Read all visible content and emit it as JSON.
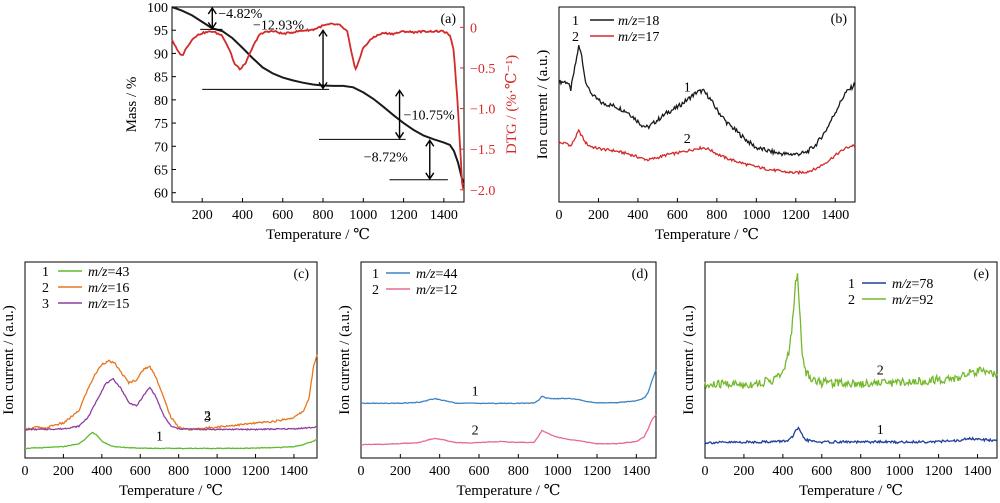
{
  "colors": {
    "black": "#1a1a1a",
    "red": "#d42a2a",
    "orange": "#e8761e",
    "purple": "#8e3fa0",
    "green": "#5dbb2f",
    "blue": "#3f83c6",
    "pink": "#e56a9a",
    "navy": "#1f3f9a",
    "lime": "#74b82c"
  },
  "chart_data": [
    {
      "id": "a",
      "panel_label": "(a)",
      "type": "line",
      "xlabel": "Temperature / ℃",
      "ylabel": "Mass / %",
      "y2label": "DTG / (%·℃⁻¹)",
      "xlim": [
        50,
        1500
      ],
      "ylim": [
        58,
        100
      ],
      "y2lim": [
        -2.15,
        0.25
      ],
      "xticks": [
        200,
        400,
        600,
        800,
        1000,
        1200,
        1400
      ],
      "yticks": [
        60,
        65,
        70,
        75,
        80,
        85,
        90,
        95,
        100
      ],
      "y2ticks": [
        0,
        -0.5,
        -1.0,
        -1.5,
        -2.0
      ],
      "y2ticklabels": [
        "0",
        "−0.5",
        "−1.0",
        "−1.5",
        "−2.0"
      ],
      "series": [
        {
          "axis": "left",
          "color": "black",
          "x": [
            50,
            100,
            150,
            200,
            250,
            300,
            350,
            400,
            450,
            500,
            550,
            600,
            650,
            700,
            750,
            800,
            850,
            900,
            950,
            1000,
            1050,
            1100,
            1150,
            1200,
            1250,
            1300,
            1350,
            1400,
            1430,
            1450,
            1470,
            1490,
            1500
          ],
          "y": [
            100,
            99.2,
            98.2,
            96.8,
            95.4,
            94.8,
            93.3,
            91.2,
            89.0,
            87.0,
            85.7,
            84.8,
            84.2,
            83.7,
            83.3,
            83.1,
            83.0,
            83.0,
            82.7,
            81.6,
            80.2,
            78.5,
            76.7,
            75.0,
            73.5,
            72.3,
            71.5,
            70.8,
            70.3,
            69.0,
            66.5,
            63.0,
            62.2
          ]
        },
        {
          "axis": "right",
          "color": "red",
          "x": [
            50,
            80,
            100,
            130,
            160,
            200,
            250,
            300,
            340,
            360,
            390,
            420,
            450,
            480,
            520,
            560,
            600,
            650,
            700,
            750,
            800,
            840,
            880,
            920,
            940,
            960,
            980,
            1000,
            1050,
            1100,
            1150,
            1200,
            1250,
            1300,
            1350,
            1400,
            1430,
            1450,
            1470,
            1490,
            1500
          ],
          "y": [
            -0.15,
            -0.3,
            -0.35,
            -0.22,
            -0.12,
            -0.07,
            -0.05,
            -0.1,
            -0.3,
            -0.45,
            -0.52,
            -0.42,
            -0.25,
            -0.1,
            -0.05,
            -0.05,
            -0.08,
            -0.06,
            -0.04,
            -0.03,
            0.02,
            0.04,
            0.03,
            -0.05,
            -0.3,
            -0.52,
            -0.4,
            -0.25,
            -0.12,
            -0.07,
            -0.08,
            -0.05,
            -0.06,
            -0.05,
            -0.05,
            -0.05,
            -0.1,
            -0.3,
            -1.0,
            -1.9,
            -2.05
          ]
        }
      ],
      "annotations": [
        {
          "text": "−4.82%",
          "from": 100,
          "to": 95.18,
          "x": 250
        },
        {
          "text": "−12.93%",
          "from": 95.18,
          "to": 82.25,
          "x": 800
        },
        {
          "text": "−10.75%",
          "from": 82.25,
          "to": 71.5,
          "x": 1180
        },
        {
          "text": "−8.72%",
          "from": 71.5,
          "to": 62.78,
          "x": 1330
        }
      ]
    },
    {
      "id": "b",
      "panel_label": "(b)",
      "type": "line",
      "xlabel": "Temperature / ℃",
      "ylabel": "Ion current / (a.u.)",
      "xlim": [
        0,
        1500
      ],
      "xticks": [
        0,
        200,
        400,
        600,
        800,
        1000,
        1200,
        1400
      ],
      "series": [
        {
          "name": "m/z=18",
          "legend_index": "1",
          "label": "1",
          "label_x": 650,
          "color": "black",
          "x": [
            40,
            60,
            80,
            100,
            115,
            130,
            150,
            180,
            220,
            280,
            350,
            420,
            450,
            500,
            550,
            600,
            650,
            700,
            730,
            760,
            800,
            850,
            900,
            950,
            1000,
            1050,
            1100,
            1150,
            1200,
            1250,
            1300,
            1350,
            1400,
            1450,
            1500
          ],
          "y": [
            0.64,
            0.58,
            0.75,
            0.92,
            0.85,
            0.68,
            0.58,
            0.52,
            0.47,
            0.45,
            0.4,
            0.3,
            0.28,
            0.34,
            0.4,
            0.44,
            0.5,
            0.56,
            0.57,
            0.52,
            0.42,
            0.32,
            0.25,
            0.18,
            0.12,
            0.1,
            0.08,
            0.07,
            0.07,
            0.08,
            0.14,
            0.25,
            0.4,
            0.55,
            0.62
          ]
        },
        {
          "name": "m/z=17",
          "legend_index": "2",
          "label": "2",
          "label_x": 650,
          "color": "red",
          "x": [
            40,
            60,
            80,
            100,
            115,
            130,
            150,
            180,
            220,
            280,
            350,
            420,
            450,
            500,
            550,
            600,
            650,
            700,
            730,
            760,
            800,
            850,
            900,
            950,
            1000,
            1050,
            1100,
            1150,
            1200,
            1250,
            1300,
            1350,
            1400,
            1450,
            1500
          ],
          "y": [
            0.62,
            0.58,
            0.68,
            0.78,
            0.72,
            0.64,
            0.59,
            0.56,
            0.54,
            0.52,
            0.48,
            0.42,
            0.4,
            0.43,
            0.47,
            0.49,
            0.52,
            0.55,
            0.56,
            0.54,
            0.48,
            0.42,
            0.38,
            0.34,
            0.31,
            0.28,
            0.26,
            0.24,
            0.23,
            0.24,
            0.28,
            0.36,
            0.46,
            0.55,
            0.6
          ]
        }
      ]
    },
    {
      "id": "c",
      "panel_label": "(c)",
      "type": "line",
      "xlabel": "Temperature / ℃",
      "ylabel": "Ion current / (a.u.)",
      "xlim": [
        0,
        1520
      ],
      "xticks": [
        0,
        200,
        400,
        600,
        800,
        1000,
        1200,
        1400
      ],
      "series": [
        {
          "name": "m/z=43",
          "legend_index": "1",
          "label": "1",
          "label_x": 700,
          "color": "green",
          "x": [
            0,
            100,
            200,
            280,
            320,
            350,
            370,
            400,
            450,
            500,
            600,
            700,
            800,
            900,
            1000,
            1100,
            1200,
            1300,
            1400,
            1450,
            1500,
            1520
          ],
          "y": [
            0.05,
            0.07,
            0.1,
            0.18,
            0.35,
            0.5,
            0.45,
            0.25,
            0.12,
            0.08,
            0.06,
            0.05,
            0.05,
            0.05,
            0.05,
            0.05,
            0.06,
            0.07,
            0.1,
            0.16,
            0.25,
            0.3
          ]
        },
        {
          "name": "m/z=16",
          "legend_index": "2",
          "label": "2",
          "label_x": 950,
          "color": "orange",
          "x": [
            0,
            60,
            100,
            150,
            200,
            280,
            320,
            360,
            400,
            440,
            470,
            500,
            540,
            580,
            620,
            650,
            680,
            720,
            760,
            800,
            850,
            900,
            1000,
            1100,
            1200,
            1300,
            1400,
            1450,
            1480,
            1500,
            1520
          ],
          "y": [
            0.05,
            0.08,
            0.06,
            0.1,
            0.12,
            0.25,
            0.45,
            0.62,
            0.75,
            0.78,
            0.75,
            0.66,
            0.55,
            0.58,
            0.7,
            0.72,
            0.62,
            0.4,
            0.18,
            0.08,
            0.05,
            0.06,
            0.08,
            0.1,
            0.12,
            0.14,
            0.18,
            0.25,
            0.4,
            0.7,
            0.85
          ]
        },
        {
          "name": "m/z=15",
          "legend_index": "3",
          "label": "3",
          "label_x": 950,
          "color": "purple",
          "x": [
            0,
            100,
            200,
            280,
            330,
            380,
            420,
            460,
            500,
            540,
            580,
            620,
            650,
            680,
            720,
            760,
            800,
            900,
            1000,
            1200,
            1400,
            1500,
            1520
          ],
          "y": [
            0.05,
            0.05,
            0.06,
            0.1,
            0.25,
            0.55,
            0.78,
            0.85,
            0.7,
            0.48,
            0.42,
            0.6,
            0.72,
            0.58,
            0.28,
            0.1,
            0.06,
            0.05,
            0.05,
            0.05,
            0.06,
            0.08,
            0.1
          ]
        }
      ]
    },
    {
      "id": "d",
      "panel_label": "(d)",
      "type": "line",
      "xlabel": "Temperature / ℃",
      "ylabel": "Ion current / (a.u.)",
      "xlim": [
        0,
        1500
      ],
      "xticks": [
        0,
        200,
        400,
        600,
        800,
        1000,
        1200,
        1400
      ],
      "series": [
        {
          "name": "m/z=44",
          "legend_index": "1",
          "label": "1",
          "label_x": 580,
          "color": "blue",
          "x": [
            0,
            200,
            300,
            350,
            380,
            420,
            480,
            600,
            800,
            880,
            900,
            920,
            940,
            980,
            1050,
            1100,
            1150,
            1200,
            1300,
            1400,
            1440,
            1460,
            1480,
            1500
          ],
          "y": [
            0.05,
            0.05,
            0.08,
            0.15,
            0.18,
            0.13,
            0.06,
            0.05,
            0.05,
            0.06,
            0.12,
            0.25,
            0.2,
            0.18,
            0.19,
            0.16,
            0.1,
            0.06,
            0.07,
            0.12,
            0.2,
            0.35,
            0.7,
            1.0
          ]
        },
        {
          "name": "m/z=12",
          "legend_index": "2",
          "label": "2",
          "label_x": 580,
          "color": "pink",
          "x": [
            0,
            100,
            200,
            300,
            350,
            380,
            420,
            480,
            550,
            600,
            700,
            800,
            880,
            900,
            920,
            940,
            980,
            1050,
            1100,
            1200,
            1300,
            1400,
            1440,
            1460,
            1480,
            1500
          ],
          "y": [
            0.05,
            0.06,
            0.08,
            0.12,
            0.22,
            0.25,
            0.2,
            0.12,
            0.1,
            0.12,
            0.15,
            0.12,
            0.12,
            0.3,
            0.5,
            0.45,
            0.32,
            0.22,
            0.18,
            0.08,
            0.08,
            0.15,
            0.3,
            0.55,
            0.85,
            1.0
          ]
        }
      ]
    },
    {
      "id": "e",
      "panel_label": "(e)",
      "type": "line",
      "xlabel": "Temperature / ℃",
      "ylabel": "Ion current / (a.u.)",
      "xlim": [
        0,
        1500
      ],
      "xticks": [
        0,
        200,
        400,
        600,
        800,
        1000,
        1200,
        1400
      ],
      "series": [
        {
          "name": "m/z=78",
          "legend_index": "1",
          "label": "1",
          "label_x": 900,
          "color": "navy",
          "x": [
            0,
            100,
            200,
            300,
            380,
            420,
            450,
            470,
            480,
            495,
            520,
            560,
            600,
            700,
            800,
            900,
            1000,
            1100,
            1200,
            1300,
            1350,
            1400,
            1450,
            1500
          ],
          "y": [
            0.05,
            0.05,
            0.06,
            0.07,
            0.08,
            0.1,
            0.2,
            0.42,
            0.45,
            0.28,
            0.12,
            0.08,
            0.06,
            0.07,
            0.06,
            0.07,
            0.06,
            0.07,
            0.08,
            0.1,
            0.16,
            0.14,
            0.12,
            0.12
          ]
        },
        {
          "name": "m/z=92",
          "legend_index": "2",
          "label": "2",
          "label_x": 900,
          "color": "lime",
          "x": [
            0,
            100,
            200,
            300,
            350,
            400,
            430,
            450,
            465,
            475,
            485,
            500,
            520,
            560,
            600,
            700,
            800,
            900,
            1000,
            1100,
            1200,
            1300,
            1350,
            1400,
            1450,
            1500
          ],
          "y": [
            0.1,
            0.12,
            0.11,
            0.13,
            0.15,
            0.2,
            0.35,
            0.6,
            0.92,
            0.95,
            0.7,
            0.35,
            0.2,
            0.15,
            0.13,
            0.13,
            0.12,
            0.13,
            0.13,
            0.14,
            0.15,
            0.16,
            0.2,
            0.22,
            0.19,
            0.2
          ]
        }
      ]
    }
  ]
}
